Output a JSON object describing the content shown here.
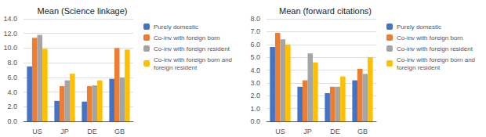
{
  "chart_data": [
    {
      "type": "bar",
      "title": "Mean (Science linkage)",
      "categories": [
        "US",
        "JP",
        "DE",
        "GB"
      ],
      "series": [
        {
          "name": "Purely domestic",
          "color": "#4472c4",
          "values": [
            7.5,
            2.8,
            2.7,
            5.8
          ]
        },
        {
          "name": "Co-inv with foreign born",
          "color": "#ed7d31",
          "values": [
            11.4,
            4.8,
            4.8,
            10.0
          ]
        },
        {
          "name": "Co-inv with foreign resident",
          "color": "#a5a5a5",
          "values": [
            11.8,
            5.6,
            4.9,
            6.0
          ]
        },
        {
          "name": "Co-inv with foreign born and\nforeign resident",
          "color": "#ffc000",
          "values": [
            9.9,
            6.5,
            5.6,
            9.8
          ]
        }
      ],
      "ylim": [
        0,
        14.0
      ],
      "yticks": [
        {
          "value": 0.0,
          "label": "0.0"
        },
        {
          "value": 2.0,
          "label": "2.0"
        },
        {
          "value": 4.0,
          "label": "4.0"
        },
        {
          "value": 6.0,
          "label": "6.0"
        },
        {
          "value": 8.0,
          "label": "8.0"
        },
        {
          "value": 10.0,
          "label": "10.0"
        },
        {
          "value": 12.0,
          "label": "12.0"
        },
        {
          "value": 14.0,
          "label": "14.0"
        }
      ],
      "grid": true,
      "legend": "upper right"
    },
    {
      "type": "bar",
      "title": "Mean (forward citations)",
      "categories": [
        "US",
        "JP",
        "DE",
        "GB"
      ],
      "series": [
        {
          "name": "Purely domestic",
          "color": "#4472c4",
          "values": [
            5.8,
            2.7,
            2.2,
            3.2
          ]
        },
        {
          "name": "Co-inv with foreign born",
          "color": "#ed7d31",
          "values": [
            6.9,
            3.2,
            2.7,
            4.1
          ]
        },
        {
          "name": "Co-inv with foreign resident",
          "color": "#a5a5a5",
          "values": [
            6.4,
            5.3,
            2.7,
            3.7
          ]
        },
        {
          "name": "Co-inv with foreign born and\nforeign resident",
          "color": "#ffc000",
          "values": [
            6.0,
            4.6,
            3.5,
            5.0
          ]
        }
      ],
      "ylim": [
        0,
        8.0
      ],
      "yticks": [
        {
          "value": 0.0,
          "label": "0.0"
        },
        {
          "value": 1.0,
          "label": "1.0"
        },
        {
          "value": 2.0,
          "label": "2.0"
        },
        {
          "value": 3.0,
          "label": "3.0"
        },
        {
          "value": 4.0,
          "label": "4.0"
        },
        {
          "value": 5.0,
          "label": "5.0"
        },
        {
          "value": 6.0,
          "label": "6.0"
        },
        {
          "value": 7.0,
          "label": "7.0"
        },
        {
          "value": 8.0,
          "label": "8.0"
        }
      ],
      "grid": true,
      "legend": "upper right"
    }
  ]
}
